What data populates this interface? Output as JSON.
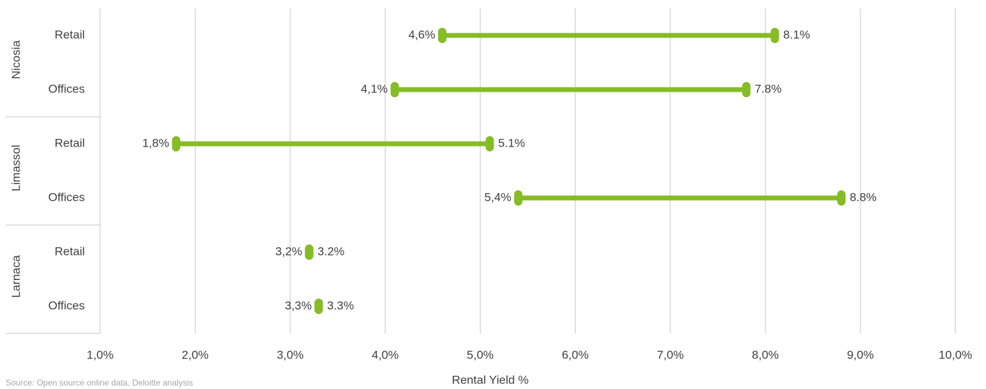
{
  "chart_data": {
    "type": "dumbbell",
    "color": "#86bc25",
    "xlabel": "Rental Yield %",
    "source": "Source: Open source online data, Deloitte analysis",
    "xlim": [
      1,
      10
    ],
    "xticks": [
      {
        "value": 1,
        "label": "1,0%"
      },
      {
        "value": 2,
        "label": "2,0%"
      },
      {
        "value": 3,
        "label": "3,0%"
      },
      {
        "value": 4,
        "label": "4,0%"
      },
      {
        "value": 5,
        "label": "5,0%"
      },
      {
        "value": 6,
        "label": "6,0%"
      },
      {
        "value": 7,
        "label": "7,0%"
      },
      {
        "value": 8,
        "label": "8,0%"
      },
      {
        "value": 9,
        "label": "9,0%"
      },
      {
        "value": 10,
        "label": "10,0%"
      }
    ],
    "grid": true,
    "groups": [
      {
        "name": "Nicosia",
        "categories": [
          "Retail",
          "Offices"
        ],
        "low": {
          "values": [
            4.6,
            4.1
          ],
          "value_labels": [
            "4,6%",
            "4,1%"
          ]
        },
        "high": {
          "values": [
            8.1,
            7.8
          ],
          "value_labels": [
            "8.1%",
            "7.8%"
          ]
        }
      },
      {
        "name": "Limassol",
        "categories": [
          "Retail",
          "Offices"
        ],
        "low": {
          "values": [
            1.8,
            5.4
          ],
          "value_labels": [
            "1,8%",
            "5,4%"
          ]
        },
        "high": {
          "values": [
            5.1,
            8.8
          ],
          "value_labels": [
            "5.1%",
            "8.8%"
          ]
        }
      },
      {
        "name": "Larnaca",
        "categories": [
          "Retail",
          "Offices"
        ],
        "low": {
          "values": [
            3.2,
            3.3
          ],
          "value_labels": [
            "3,2%",
            "3,3%"
          ]
        },
        "high": {
          "values": [
            3.2,
            3.3
          ],
          "value_labels": [
            "3.2%",
            "3.3%"
          ]
        }
      }
    ]
  }
}
